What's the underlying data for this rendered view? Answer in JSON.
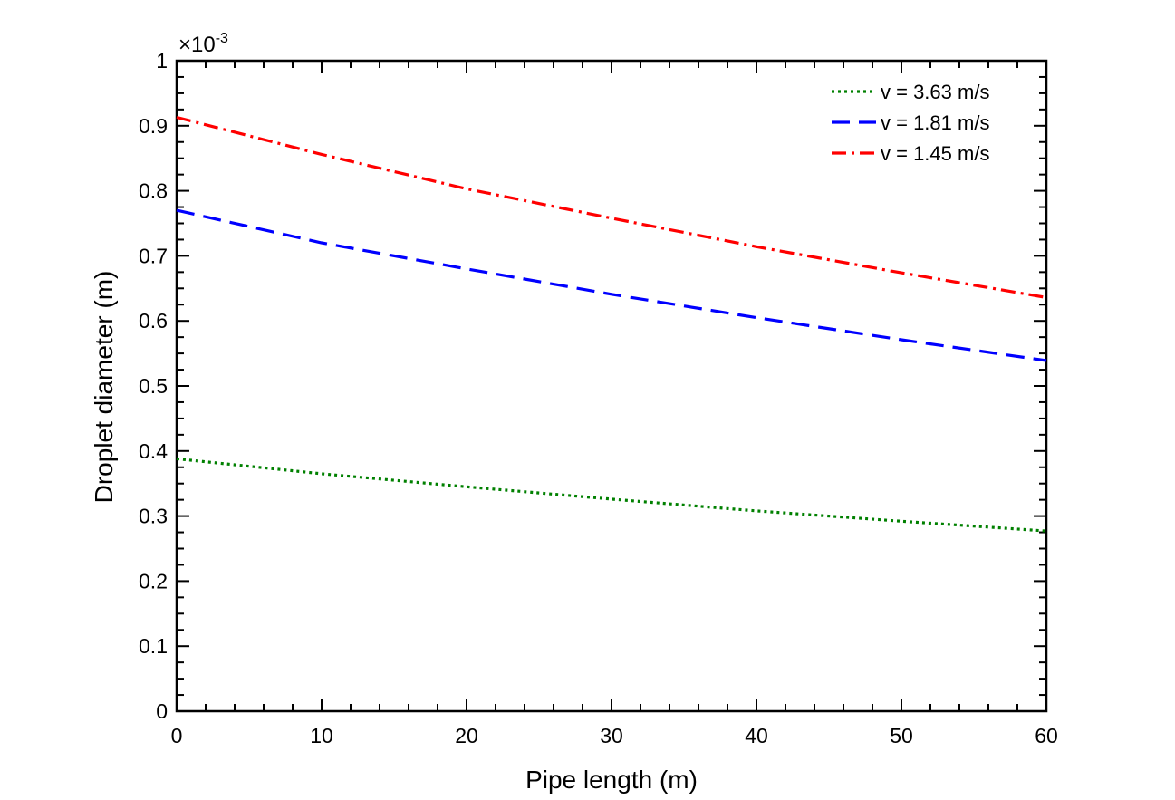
{
  "chart_data": {
    "type": "line",
    "xlabel": "Pipe length (m)",
    "ylabel": "Droplet diameter (m)",
    "xlim": [
      0,
      60
    ],
    "ylim": [
      0,
      1
    ],
    "y_multiplier": {
      "base": "×10",
      "exponent": "-3"
    },
    "x_ticks": [
      "0",
      "10",
      "20",
      "30",
      "40",
      "50",
      "60"
    ],
    "y_ticks": [
      "0",
      "0.1",
      "0.2",
      "0.3",
      "0.4",
      "0.5",
      "0.6",
      "0.7",
      "0.8",
      "0.9",
      "1"
    ],
    "legend_position": "top-right",
    "series": [
      {
        "name": "v = 3.63 m/s",
        "color": "#008000",
        "style": "dotted",
        "x": [
          0,
          10,
          20,
          30,
          40,
          50,
          60
        ],
        "values": [
          0.388,
          0.365,
          0.345,
          0.326,
          0.308,
          0.292,
          0.277
        ]
      },
      {
        "name": "v = 1.81 m/s",
        "color": "#0000ff",
        "style": "dashed",
        "x": [
          0,
          10,
          20,
          30,
          40,
          50,
          60
        ],
        "values": [
          0.77,
          0.72,
          0.68,
          0.641,
          0.605,
          0.571,
          0.539
        ]
      },
      {
        "name": "v = 1.45 m/s",
        "color": "#ff0000",
        "style": "dashdot",
        "x": [
          0,
          10,
          20,
          30,
          40,
          50,
          60
        ],
        "values": [
          0.913,
          0.856,
          0.803,
          0.758,
          0.714,
          0.674,
          0.636
        ]
      }
    ]
  }
}
